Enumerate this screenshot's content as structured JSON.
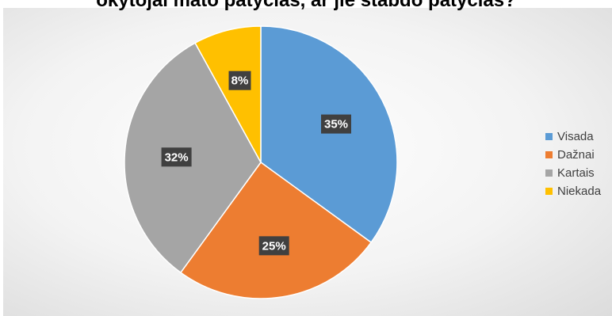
{
  "chart_data": {
    "type": "pie",
    "title": "okytojai mato patyčias, ar jie stabdo patyčias?",
    "categories": [
      "Visada",
      "Dažnai",
      "Kartais",
      "Niekada"
    ],
    "values": [
      35,
      25,
      32,
      8
    ],
    "data_labels": [
      "35%",
      "25%",
      "32%",
      "8%"
    ],
    "colors": [
      "#5b9bd5",
      "#ed7d31",
      "#a5a5a5",
      "#ffc000"
    ],
    "legend_position": "right"
  }
}
